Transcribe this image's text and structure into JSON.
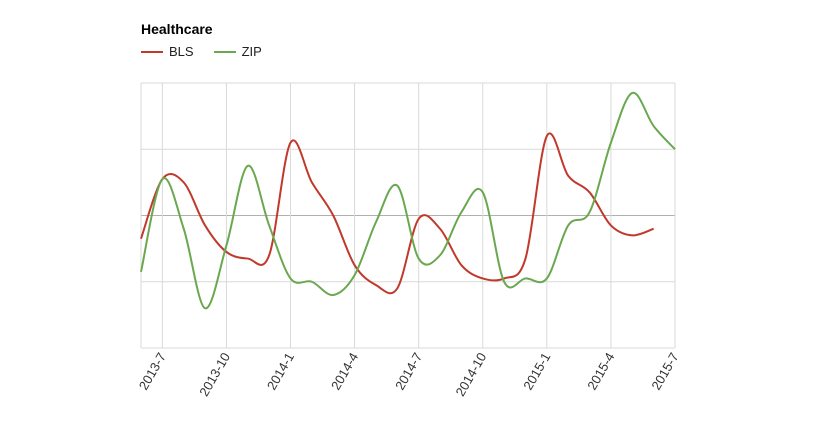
{
  "chart_data": {
    "type": "line",
    "title": "Healthcare",
    "xlabel": "",
    "ylabel": "",
    "x": [
      "2013-6",
      "2013-7",
      "2013-8",
      "2013-9",
      "2013-10",
      "2013-11",
      "2013-12",
      "2014-1",
      "2014-2",
      "2014-3",
      "2014-4",
      "2014-5",
      "2014-6",
      "2014-7",
      "2014-8",
      "2014-9",
      "2014-10",
      "2014-11",
      "2014-12",
      "2015-1",
      "2015-2",
      "2015-3",
      "2015-4",
      "2015-5",
      "2015-6",
      "2015-7"
    ],
    "xticks": [
      "2013-7",
      "2013-10",
      "2014-1",
      "2014-4",
      "2014-7",
      "2014-10",
      "2015-1",
      "2015-4",
      "2015-7"
    ],
    "ylim": [
      0,
      4
    ],
    "grid": true,
    "legend": "top-left",
    "series": [
      {
        "name": "BLS",
        "color": "#c0392b",
        "values": [
          1.65,
          2.55,
          2.5,
          1.85,
          1.45,
          1.35,
          1.4,
          3.1,
          2.5,
          2.0,
          1.25,
          0.95,
          0.9,
          1.95,
          1.8,
          1.25,
          1.05,
          1.05,
          1.35,
          3.2,
          2.6,
          2.35,
          1.85,
          1.7,
          1.8,
          null
        ]
      },
      {
        "name": "ZIP",
        "color": "#6aa84f",
        "values": [
          1.15,
          2.55,
          1.8,
          0.6,
          1.55,
          2.75,
          1.85,
          1.05,
          1.0,
          0.8,
          1.1,
          1.9,
          2.45,
          1.35,
          1.4,
          2.05,
          2.35,
          1.0,
          1.05,
          1.05,
          1.85,
          2.05,
          3.1,
          3.85,
          3.35,
          3.0
        ]
      }
    ]
  }
}
